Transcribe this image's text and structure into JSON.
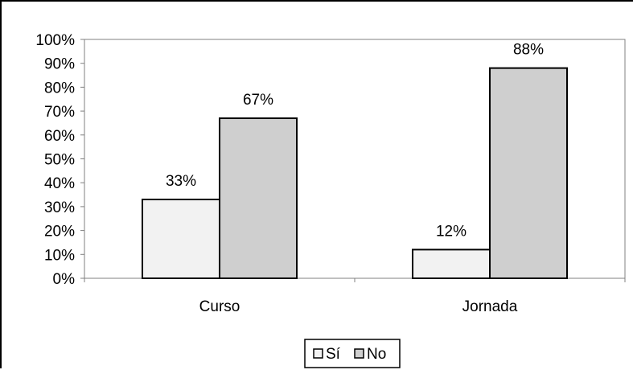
{
  "chart_data": {
    "type": "bar",
    "categories": [
      "Curso",
      "Jornada"
    ],
    "series": [
      {
        "name": "Sí",
        "values": [
          33,
          12
        ],
        "labels": [
          "33%",
          "12%"
        ],
        "color": "#f2f2f2"
      },
      {
        "name": "No",
        "values": [
          67,
          88
        ],
        "labels": [
          "67%",
          "88%"
        ],
        "color": "#cfcfcf"
      }
    ],
    "y_ticks": [
      "0%",
      "10%",
      "20%",
      "30%",
      "40%",
      "50%",
      "60%",
      "70%",
      "80%",
      "90%",
      "100%"
    ],
    "ylim": [
      0,
      100
    ],
    "grid": false,
    "legend_position": "bottom"
  },
  "colors": {
    "axis": "#808080",
    "bar_stroke": "#000000"
  }
}
